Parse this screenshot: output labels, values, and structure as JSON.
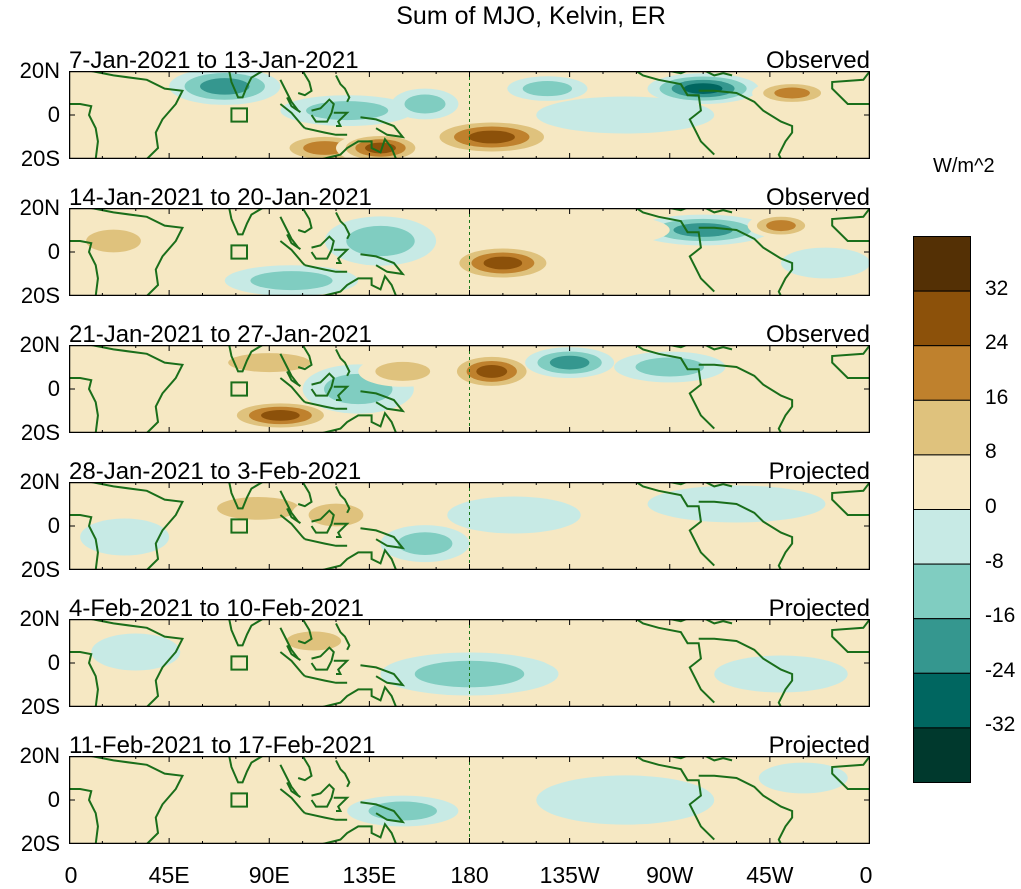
{
  "chart_data": {
    "type": "heatmap",
    "title": "Sum of MJO, Kelvin, ER",
    "units": "W/m^2",
    "y_ticks": [
      "20N",
      "0",
      "20S"
    ],
    "x_ticks": [
      "0",
      "45E",
      "90E",
      "135E",
      "180",
      "135W",
      "90W",
      "45W",
      "0"
    ],
    "colorbar": {
      "colors": [
        "#00392d",
        "#006660",
        "#35978f",
        "#80cdc1",
        "#c7eae5",
        "#f6e8c3",
        "#dfc27d",
        "#bf812d",
        "#8c510a",
        "#543005"
      ],
      "labels": [
        "-32",
        "-24",
        "-16",
        "-8",
        "0",
        "8",
        "16",
        "24",
        "32"
      ]
    },
    "panels": [
      {
        "period": "7-Jan-2021 to 13-Jan-2021",
        "kind": "Observed"
      },
      {
        "period": "14-Jan-2021 to 20-Jan-2021",
        "kind": "Observed"
      },
      {
        "period": "21-Jan-2021 to 27-Jan-2021",
        "kind": "Observed"
      },
      {
        "period": "28-Jan-2021 to 3-Feb-2021",
        "kind": "Projected"
      },
      {
        "period": "4-Feb-2021 to 10-Feb-2021",
        "kind": "Projected"
      },
      {
        "period": "11-Feb-2021 to 17-Feb-2021",
        "kind": "Projected"
      }
    ],
    "anomaly_blobs": [
      [
        [
          70,
          13,
          25,
          6,
          -24
        ],
        [
          115,
          -15,
          22,
          5,
          24
        ],
        [
          125,
          2,
          30,
          5,
          -16
        ],
        [
          140,
          -15,
          20,
          5,
          32
        ],
        [
          190,
          -10,
          30,
          6,
          32
        ],
        [
          215,
          12,
          18,
          4,
          -16
        ],
        [
          285,
          12,
          25,
          5,
          -32
        ],
        [
          325,
          10,
          18,
          4,
          24
        ],
        [
          30,
          -10,
          20,
          6,
          8
        ],
        [
          250,
          0,
          40,
          6,
          -8
        ],
        [
          160,
          5,
          15,
          5,
          -16
        ]
      ],
      [
        [
          20,
          5,
          20,
          6,
          16
        ],
        [
          75,
          -13,
          25,
          5,
          8
        ],
        [
          140,
          5,
          25,
          8,
          -16
        ],
        [
          195,
          -5,
          25,
          6,
          32
        ],
        [
          285,
          10,
          30,
          5,
          -24
        ],
        [
          320,
          12,
          15,
          4,
          24
        ],
        [
          100,
          -13,
          30,
          5,
          -16
        ],
        [
          240,
          10,
          30,
          5,
          8
        ],
        [
          340,
          -5,
          20,
          5,
          -8
        ]
      ],
      [
        [
          90,
          12,
          30,
          5,
          16
        ],
        [
          95,
          -12,
          25,
          5,
          32
        ],
        [
          130,
          0,
          25,
          8,
          -16
        ],
        [
          150,
          8,
          20,
          5,
          16
        ],
        [
          190,
          8,
          20,
          6,
          32
        ],
        [
          225,
          12,
          20,
          5,
          -24
        ],
        [
          270,
          10,
          25,
          5,
          -16
        ],
        [
          320,
          0,
          30,
          5,
          8
        ],
        [
          30,
          5,
          20,
          5,
          8
        ]
      ],
      [
        [
          85,
          8,
          30,
          6,
          16
        ],
        [
          120,
          5,
          20,
          6,
          16
        ],
        [
          160,
          -8,
          20,
          6,
          -16
        ],
        [
          200,
          5,
          30,
          6,
          -8
        ],
        [
          25,
          -5,
          20,
          6,
          -8
        ],
        [
          300,
          10,
          40,
          6,
          -8
        ]
      ],
      [
        [
          110,
          10,
          20,
          5,
          16
        ],
        [
          70,
          -10,
          25,
          5,
          8
        ],
        [
          180,
          -5,
          40,
          7,
          -16
        ],
        [
          250,
          5,
          40,
          8,
          8
        ],
        [
          30,
          5,
          20,
          6,
          -8
        ],
        [
          320,
          -5,
          30,
          6,
          -8
        ]
      ],
      [
        [
          90,
          5,
          30,
          6,
          8
        ],
        [
          150,
          -5,
          25,
          5,
          -16
        ],
        [
          70,
          -12,
          20,
          5,
          8
        ],
        [
          250,
          0,
          40,
          8,
          -8
        ],
        [
          330,
          10,
          20,
          5,
          -8
        ],
        [
          20,
          10,
          20,
          5,
          8
        ]
      ]
    ]
  }
}
